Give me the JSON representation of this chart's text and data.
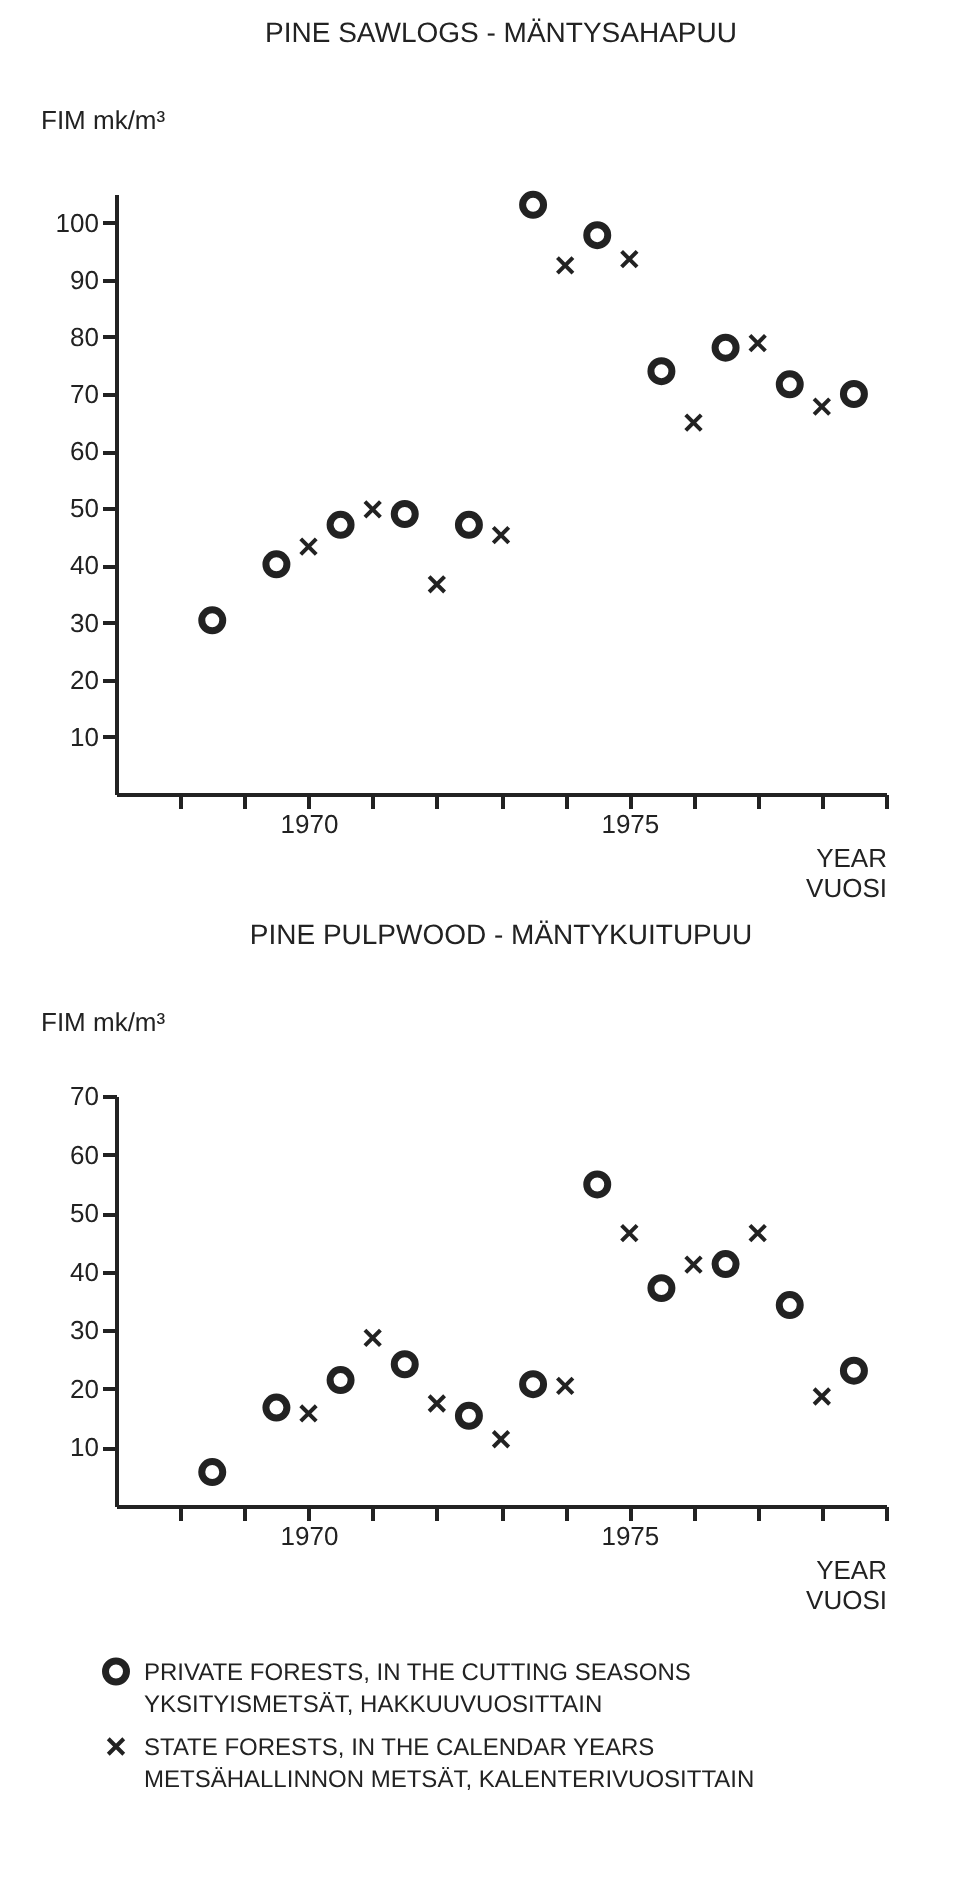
{
  "chart_data": [
    {
      "type": "scatter",
      "title": "PINE SAWLOGS - MÄNTYSAHAPUU",
      "ylabel": "FIM mk/m³",
      "xlabel": "YEAR\nVUOSI",
      "xlim": [
        1967,
        1979
      ],
      "xticks": [
        {
          "value": 1968,
          "label": null
        },
        {
          "value": 1969,
          "label": null
        },
        1970,
        {
          "value": 1971,
          "label": null
        },
        {
          "value": 1972,
          "label": null
        },
        {
          "value": 1973,
          "label": null
        },
        {
          "value": 1974,
          "label": null
        },
        1975,
        {
          "value": 1976,
          "label": null
        },
        {
          "value": 1977,
          "label": null
        },
        {
          "value": 1978,
          "label": null
        },
        {
          "value": 1979,
          "label": null
        }
      ],
      "ylim": [
        0,
        105
      ],
      "yticks": [
        10,
        20,
        30,
        40,
        50,
        60,
        70,
        80,
        90,
        100
      ],
      "grid": false,
      "series": [
        {
          "color": "#222222",
          "marker": "circle",
          "x": [
            1968.5,
            1969.5,
            1970.5,
            1971.5,
            1972.5,
            1973.5,
            1974.5,
            1975.5,
            1976.5,
            1977.5,
            1978.5
          ],
          "values": [
            30.4,
            40.2,
            47.1,
            49.0,
            47.1,
            103.1,
            97.8,
            74.0,
            78.1,
            71.7,
            70.0
          ]
        },
        {
          "color": "#222222",
          "marker": "cross",
          "x": [
            1970,
            1971,
            1972,
            1973,
            1974,
            1975,
            1976,
            1977,
            1978
          ],
          "values": [
            43.3,
            49.8,
            36.7,
            45.3,
            92.5,
            93.6,
            65.0,
            78.9,
            67.8
          ]
        }
      ]
    },
    {
      "type": "scatter",
      "title": "PINE PULPWOOD - MÄNTYKUITUPUU",
      "ylabel": "FIM mk/m³",
      "xlabel": "YEAR\nVUOSI",
      "xlim": [
        1967,
        1979
      ],
      "xticks": [
        {
          "value": 1968,
          "label": null
        },
        {
          "value": 1969,
          "label": null
        },
        1970,
        {
          "value": 1971,
          "label": null
        },
        {
          "value": 1972,
          "label": null
        },
        {
          "value": 1973,
          "label": null
        },
        {
          "value": 1974,
          "label": null
        },
        1975,
        {
          "value": 1976,
          "label": null
        },
        {
          "value": 1977,
          "label": null
        },
        {
          "value": 1978,
          "label": null
        },
        {
          "value": 1979,
          "label": null
        }
      ],
      "ylim": [
        0,
        70
      ],
      "yticks": [
        10,
        20,
        30,
        40,
        50,
        60,
        70
      ],
      "grid": false,
      "legend": "bottom",
      "series": [
        {
          "name": "PRIVATE FORESTS, IN THE CUTTING SEASONS\nYKSITYISMETSÄT, HAKKUUVUOSITTAIN",
          "color": "#222222",
          "marker": "circle",
          "x": [
            1968.5,
            1969.5,
            1970.5,
            1971.5,
            1972.5,
            1973.5,
            1974.5,
            1975.5,
            1976.5,
            1977.5,
            1978.5
          ],
          "values": [
            5.8,
            16.8,
            21.5,
            24.2,
            15.4,
            20.8,
            54.9,
            37.2,
            41.3,
            34.3,
            23.1
          ]
        },
        {
          "name": "STATE FORESTS, IN THE CALENDAR YEARS\nMETSÄHALLINNON METSÄT, KALENTERIVUOSITTAIN",
          "color": "#222222",
          "marker": "cross",
          "x": [
            1970,
            1971,
            1972,
            1973,
            1974,
            1975,
            1976,
            1977,
            1978
          ],
          "values": [
            15.8,
            28.7,
            17.5,
            11.4,
            20.5,
            46.6,
            41.2,
            46.6,
            18.7
          ]
        }
      ]
    }
  ]
}
